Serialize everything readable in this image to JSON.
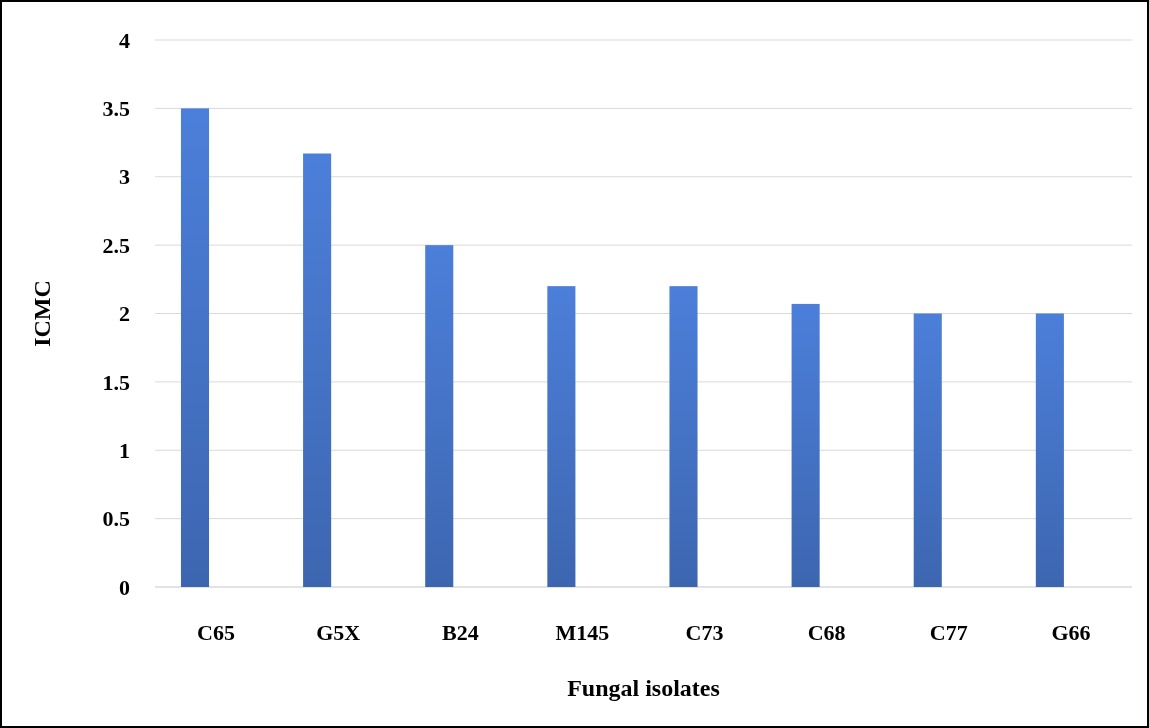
{
  "chart_data": {
    "type": "bar",
    "xlabel": "Fungal isolates",
    "ylabel": "ICMC",
    "categories": [
      "C65",
      "G5X",
      "B24",
      "M145",
      "C73",
      "C68",
      "C77",
      "G66"
    ],
    "values": [
      3.5,
      3.17,
      2.5,
      2.2,
      2.2,
      2.07,
      2,
      2
    ],
    "color": "#4472c4",
    "ylim": [
      0,
      4
    ],
    "yticks": [
      0,
      0.5,
      1,
      1.5,
      2,
      2.5,
      3,
      3.5,
      4
    ],
    "grid": "y"
  }
}
